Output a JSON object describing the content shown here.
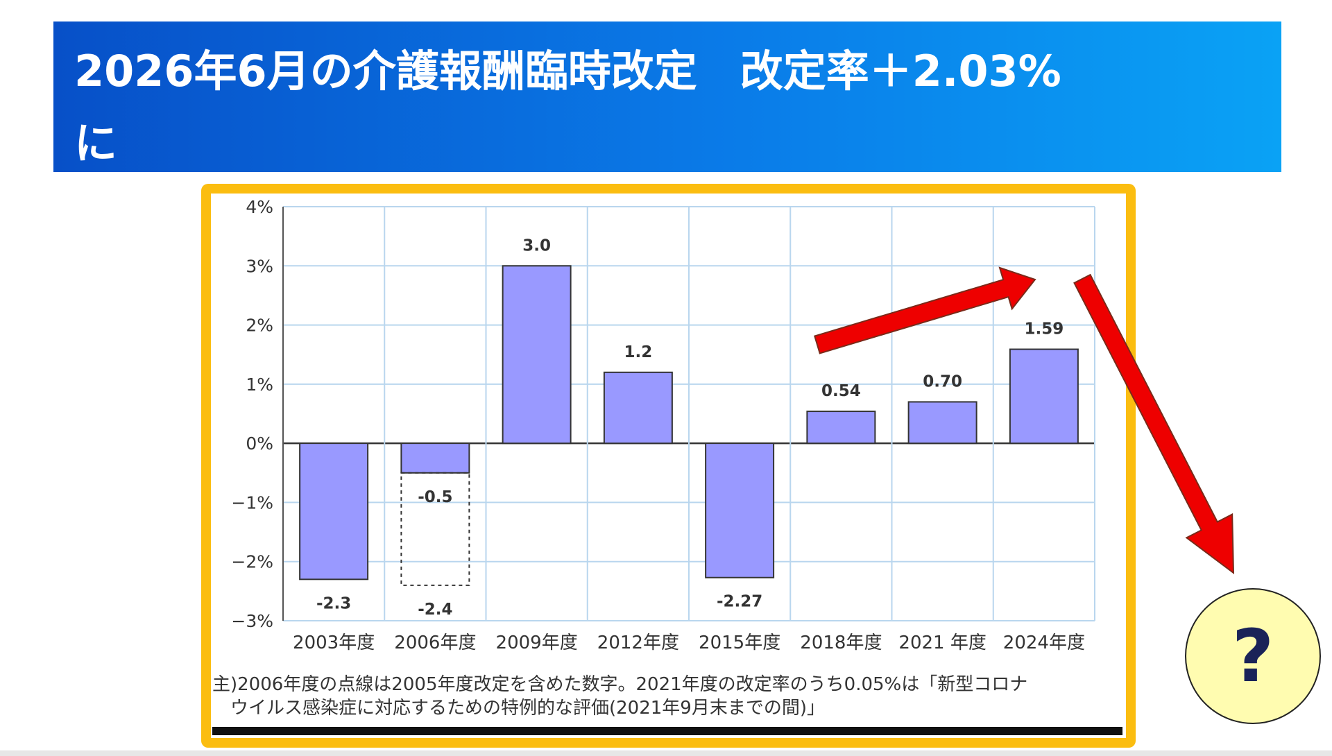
{
  "header": {
    "title": "2026年6月の介護報酬臨時改定　改定率＋2.03%\nに"
  },
  "chart_data": {
    "type": "bar",
    "categories": [
      "2003年度",
      "2006年度",
      "2009年度",
      "2012年度",
      "2015年度",
      "2018年度",
      "2021 年度",
      "2024年度"
    ],
    "values": [
      -2.3,
      -0.5,
      3.0,
      1.2,
      -2.27,
      0.54,
      0.7,
      1.59
    ],
    "value_labels": [
      "-2.3",
      "-0.5",
      "3.0",
      "1.2",
      "-2.27",
      "0.54",
      "0.70",
      "1.59"
    ],
    "dotted_extension": {
      "category": "2006年度",
      "value": -2.4,
      "label": "-2.4"
    },
    "yticks": [
      4,
      3,
      2,
      1,
      0,
      -1,
      -2,
      -3
    ],
    "ytick_labels": [
      "4%",
      "3%",
      "2%",
      "1%",
      "0%",
      "−1%",
      "−2%",
      "−3%"
    ],
    "ylim": [
      -3,
      4
    ],
    "grid": true,
    "bar_color": "#9999ff",
    "title": "",
    "xlabel": "",
    "ylabel": ""
  },
  "footnote": {
    "line1": "主)2006年度の点線は2005年度改定を含めた数字。2021年度の改定率のうち0.05%は「新型コロナ",
    "line2": "ウイルス感染症に対応するための特例的な評価(2021年9月末までの間)」"
  },
  "annotation": {
    "question_mark": "?",
    "arrow_color": "#ee0000"
  },
  "colors": {
    "frame_border": "#fbbd10",
    "question_fill": "#fffcb0"
  }
}
